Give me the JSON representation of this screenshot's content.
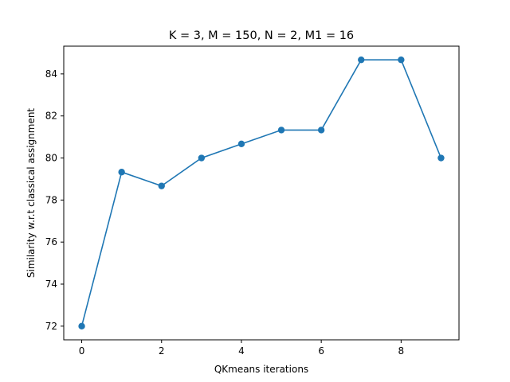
{
  "chart_data": {
    "type": "line",
    "title": "K = 3, M = 150, N = 2, M1 = 16",
    "xlabel": "QKmeans iterations",
    "ylabel": "Similarity w.r.t classical assignment",
    "x": [
      0,
      1,
      2,
      3,
      4,
      5,
      6,
      7,
      8,
      9
    ],
    "series": [
      {
        "values": [
          72.0,
          79.33,
          78.67,
          80.0,
          80.67,
          81.33,
          81.33,
          84.67,
          84.67,
          80.0
        ],
        "color": "#1f77b4",
        "marker": "circle"
      }
    ],
    "xlim": [
      -0.45,
      9.45
    ],
    "ylim": [
      71.35,
      85.32
    ],
    "xticks": [
      0,
      2,
      4,
      6,
      8
    ],
    "yticks": [
      72,
      74,
      76,
      78,
      80,
      82,
      84
    ],
    "grid": false,
    "legend": "none"
  }
}
